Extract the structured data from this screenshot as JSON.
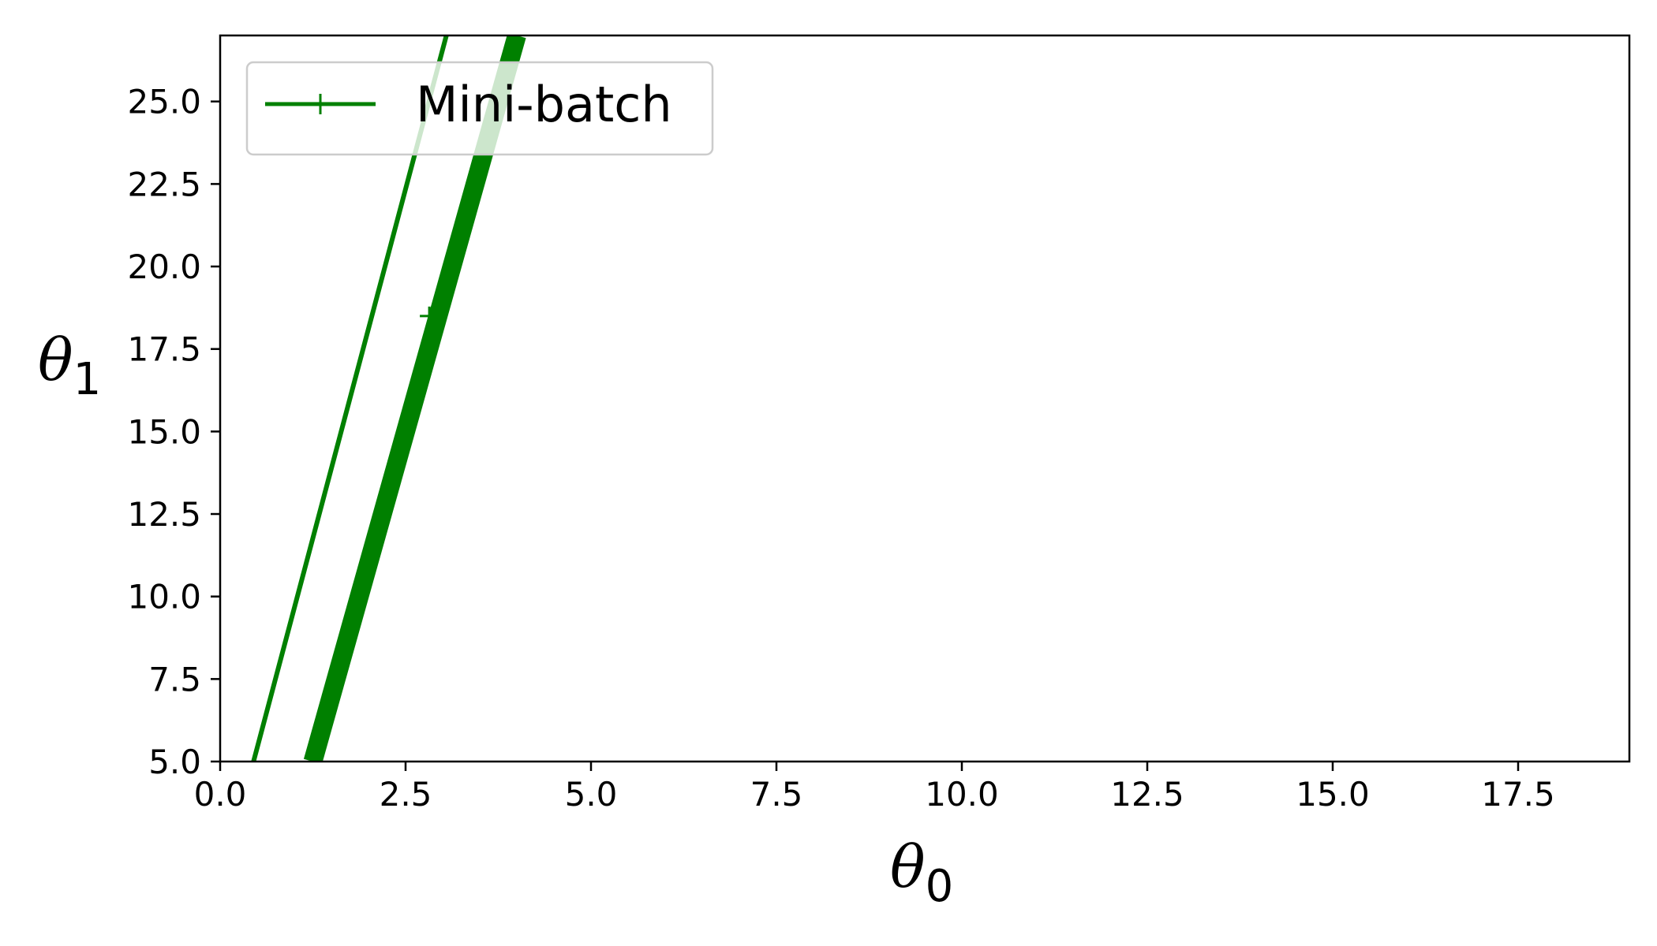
{
  "chart_data": {
    "type": "line",
    "xlabel": {
      "symbol": "θ",
      "sub": "0"
    },
    "ylabel": {
      "symbol": "θ",
      "sub": "1"
    },
    "xlim": [
      0,
      19
    ],
    "ylim": [
      5,
      27
    ],
    "xticks": [
      "0.0",
      "2.5",
      "5.0",
      "7.5",
      "10.0",
      "12.5",
      "15.0",
      "17.5"
    ],
    "yticks": [
      "5.0",
      "7.5",
      "10.0",
      "12.5",
      "15.0",
      "17.5",
      "20.0",
      "22.5",
      "25.0"
    ],
    "grid": false,
    "legend": {
      "position": "upper left",
      "entries": [
        "Mini-batch"
      ]
    },
    "series": [
      {
        "name": "Mini-batch",
        "color": "#008000",
        "marker": "+",
        "points": [
          [
            2.82,
            18.5
          ]
        ],
        "trail_lines": [
          {
            "x": [
              0.45,
              3.05
            ],
            "y": [
              5,
              27
            ],
            "weight": "thin"
          },
          {
            "x": [
              1.25,
              4.0
            ],
            "y": [
              5,
              27
            ],
            "weight": "thick"
          }
        ]
      }
    ]
  }
}
